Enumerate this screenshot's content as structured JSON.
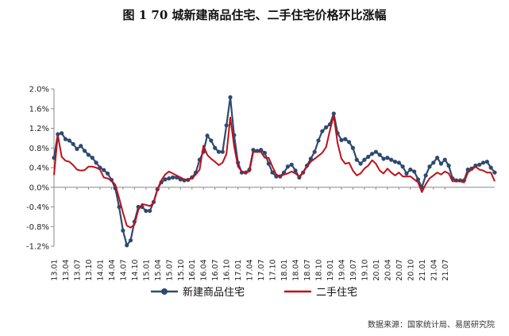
{
  "chart_data": {
    "type": "line",
    "title": "图 1   70 城新建商品住宅、二手住宅价格环比涨幅",
    "source": "数据来源：国家统计局、易居研究院",
    "xlabel": "",
    "ylabel": "",
    "ylim": [
      -1.2,
      2.0
    ],
    "yticks": [
      2.0,
      1.6,
      1.2,
      0.8,
      0.4,
      0.0,
      -0.4,
      -0.8,
      -1.2
    ],
    "ytick_labels": [
      "2.0%",
      "1.6%",
      "1.2%",
      "0.8%",
      "0.4%",
      "0.0%",
      "-0.4%",
      "-0.8%",
      "-1.2%"
    ],
    "xtick_labels": [
      "13.01",
      "13.04",
      "13.07",
      "13.10",
      "14.01",
      "14.04",
      "14.07",
      "14.10",
      "15.01",
      "15.04",
      "15.07",
      "15.10",
      "16.01",
      "16.04",
      "16.07",
      "16.10",
      "17.01",
      "17.04",
      "17.07",
      "17.10",
      "18.01",
      "18.04",
      "18.07",
      "18.10",
      "19.01",
      "19.04",
      "19.07",
      "19.10",
      "20.01",
      "20.04",
      "20.07",
      "20.10",
      "21.01",
      "21.04",
      "21.07"
    ],
    "x_start": "2013-01",
    "x_end": "2021-07",
    "grid": false,
    "legend_position": "bottom",
    "series": [
      {
        "name": "新建商品住宅",
        "color": "#2e4a70",
        "marker": "circle",
        "values": [
          0.6,
          1.08,
          1.1,
          0.98,
          0.95,
          0.88,
          0.78,
          0.84,
          0.74,
          0.66,
          0.6,
          0.5,
          0.4,
          0.35,
          0.28,
          0.15,
          -0.02,
          -0.4,
          -0.88,
          -1.18,
          -1.08,
          -0.7,
          -0.4,
          -0.4,
          -0.48,
          -0.48,
          -0.3,
          -0.04,
          0.1,
          0.16,
          0.18,
          0.2,
          0.2,
          0.16,
          0.14,
          0.15,
          0.2,
          0.3,
          0.56,
          0.72,
          1.05,
          0.95,
          0.8,
          0.72,
          0.72,
          1.26,
          1.83,
          1.06,
          0.5,
          0.3,
          0.3,
          0.36,
          0.76,
          0.74,
          0.76,
          0.7,
          0.48,
          0.3,
          0.22,
          0.22,
          0.3,
          0.42,
          0.46,
          0.34,
          0.2,
          0.3,
          0.44,
          0.58,
          0.72,
          0.95,
          1.14,
          1.22,
          1.28,
          1.5,
          1.1,
          0.96,
          0.98,
          0.92,
          0.8,
          0.56,
          0.48,
          0.56,
          0.62,
          0.68,
          0.72,
          0.66,
          0.58,
          0.6,
          0.56,
          0.52,
          0.5,
          0.42,
          0.28,
          0.36,
          0.32,
          0.16,
          0.0,
          0.24,
          0.42,
          0.5,
          0.6,
          0.48,
          0.56,
          0.44,
          0.18,
          0.14,
          0.14,
          0.14,
          0.36,
          0.38,
          0.44,
          0.46,
          0.5,
          0.52,
          0.4,
          0.3
        ]
      },
      {
        "name": "二手住宅",
        "color": "#c0101a",
        "marker": "none",
        "values": [
          0.25,
          1.06,
          0.62,
          0.54,
          0.52,
          0.45,
          0.36,
          0.34,
          0.35,
          0.42,
          0.42,
          0.4,
          0.36,
          0.2,
          0.18,
          0.14,
          0.05,
          -0.22,
          -0.52,
          -0.78,
          -0.82,
          -0.76,
          -0.46,
          -0.34,
          -0.36,
          -0.38,
          -0.32,
          -0.04,
          0.14,
          0.26,
          0.32,
          0.28,
          0.24,
          0.2,
          0.16,
          0.16,
          0.18,
          0.26,
          0.36,
          0.85,
          0.66,
          0.58,
          0.52,
          0.45,
          0.5,
          0.68,
          1.42,
          0.84,
          0.42,
          0.32,
          0.3,
          0.32,
          0.72,
          0.72,
          0.72,
          0.6,
          0.6,
          0.42,
          0.26,
          0.22,
          0.26,
          0.28,
          0.32,
          0.28,
          0.22,
          0.3,
          0.42,
          0.52,
          0.58,
          0.64,
          0.7,
          0.82,
          1.16,
          1.46,
          0.9,
          0.58,
          0.48,
          0.5,
          0.34,
          0.24,
          0.28,
          0.38,
          0.44,
          0.55,
          0.48,
          0.34,
          0.28,
          0.38,
          0.3,
          0.24,
          0.3,
          0.22,
          0.22,
          0.22,
          0.16,
          0.1,
          -0.1,
          0.06,
          0.18,
          0.24,
          0.3,
          0.26,
          0.32,
          0.28,
          0.12,
          0.12,
          0.12,
          0.1,
          0.3,
          0.36,
          0.42,
          0.36,
          0.34,
          0.3,
          0.3,
          0.12
        ]
      }
    ]
  }
}
